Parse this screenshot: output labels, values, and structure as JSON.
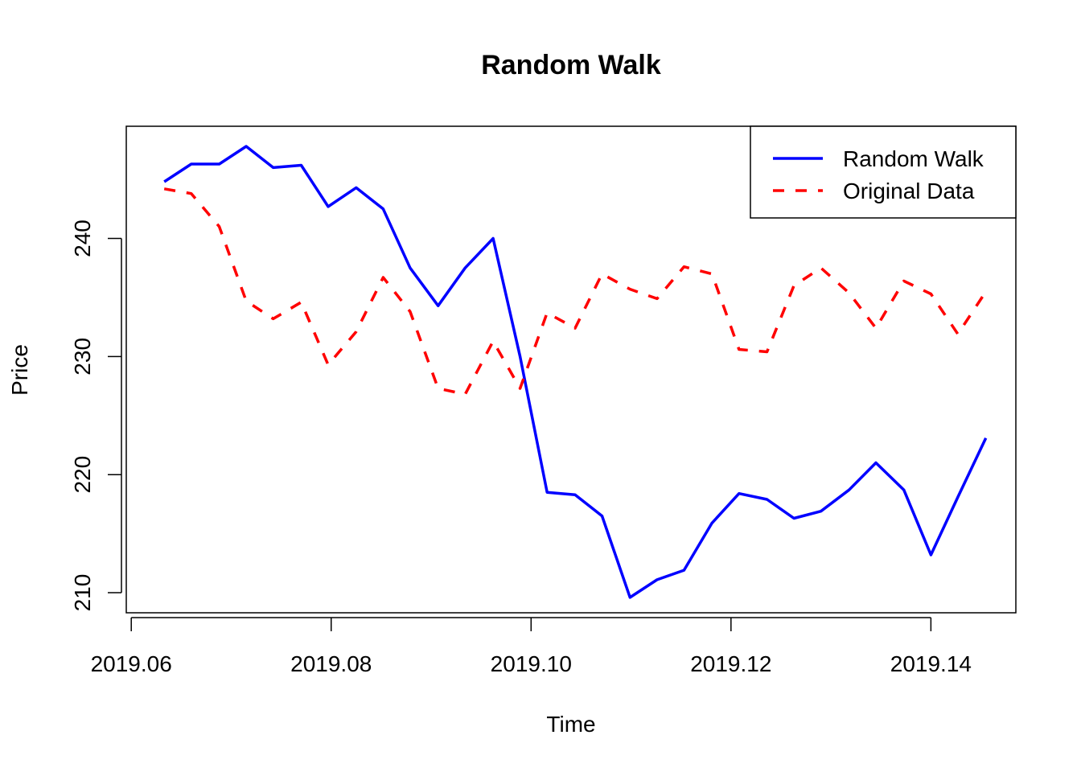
{
  "chart_data": {
    "type": "line",
    "title": "Random Walk",
    "xlabel": "Time",
    "ylabel": "Price",
    "xlim": [
      2019.0595,
      2019.1485
    ],
    "ylim": [
      208.3,
      249.5
    ],
    "x_ticks": [
      2019.06,
      2019.08,
      2019.1,
      2019.12,
      2019.14
    ],
    "x_tick_labels": [
      "2019.06",
      "2019.08",
      "2019.10",
      "2019.12",
      "2019.14"
    ],
    "y_ticks": [
      210,
      220,
      230,
      240
    ],
    "y_tick_labels": [
      "210",
      "220",
      "230",
      "240"
    ],
    "grid": false,
    "legend_position": "top-right",
    "x": [
      2019.0633,
      2019.066,
      2019.0688,
      2019.0715,
      2019.0742,
      2019.077,
      2019.0797,
      2019.0825,
      2019.0852,
      2019.0879,
      2019.0907,
      2019.0934,
      2019.0962,
      2019.0989,
      2019.1016,
      2019.1044,
      2019.1071,
      2019.1099,
      2019.1126,
      2019.1153,
      2019.1181,
      2019.1208,
      2019.1236,
      2019.1263,
      2019.129,
      2019.1318,
      2019.1345,
      2019.1373,
      2019.14,
      2019.1427,
      2019.1455
    ],
    "series": [
      {
        "name": "Random Walk",
        "color": "#0000ff",
        "dash": "solid",
        "values": [
          244.8,
          246.3,
          246.3,
          247.8,
          246.0,
          246.2,
          242.7,
          244.3,
          242.5,
          237.5,
          234.3,
          237.5,
          240.0,
          230.0,
          218.5,
          218.3,
          216.5,
          209.6,
          211.1,
          211.9,
          215.9,
          218.4,
          217.9,
          216.3,
          216.9,
          218.7,
          221.0,
          218.7,
          213.2,
          218.1,
          223.1
        ]
      },
      {
        "name": "Original Data",
        "color": "#ff0000",
        "dash": "dashed",
        "values": [
          244.2,
          243.8,
          241.0,
          234.7,
          233.2,
          234.6,
          229.3,
          232.1,
          236.7,
          233.8,
          227.3,
          226.8,
          231.3,
          227.3,
          233.7,
          232.4,
          237.0,
          235.7,
          234.9,
          237.6,
          237.0,
          230.6,
          230.4,
          236.0,
          237.5,
          235.4,
          232.4,
          236.4,
          235.3,
          231.9,
          235.5
        ]
      }
    ]
  }
}
